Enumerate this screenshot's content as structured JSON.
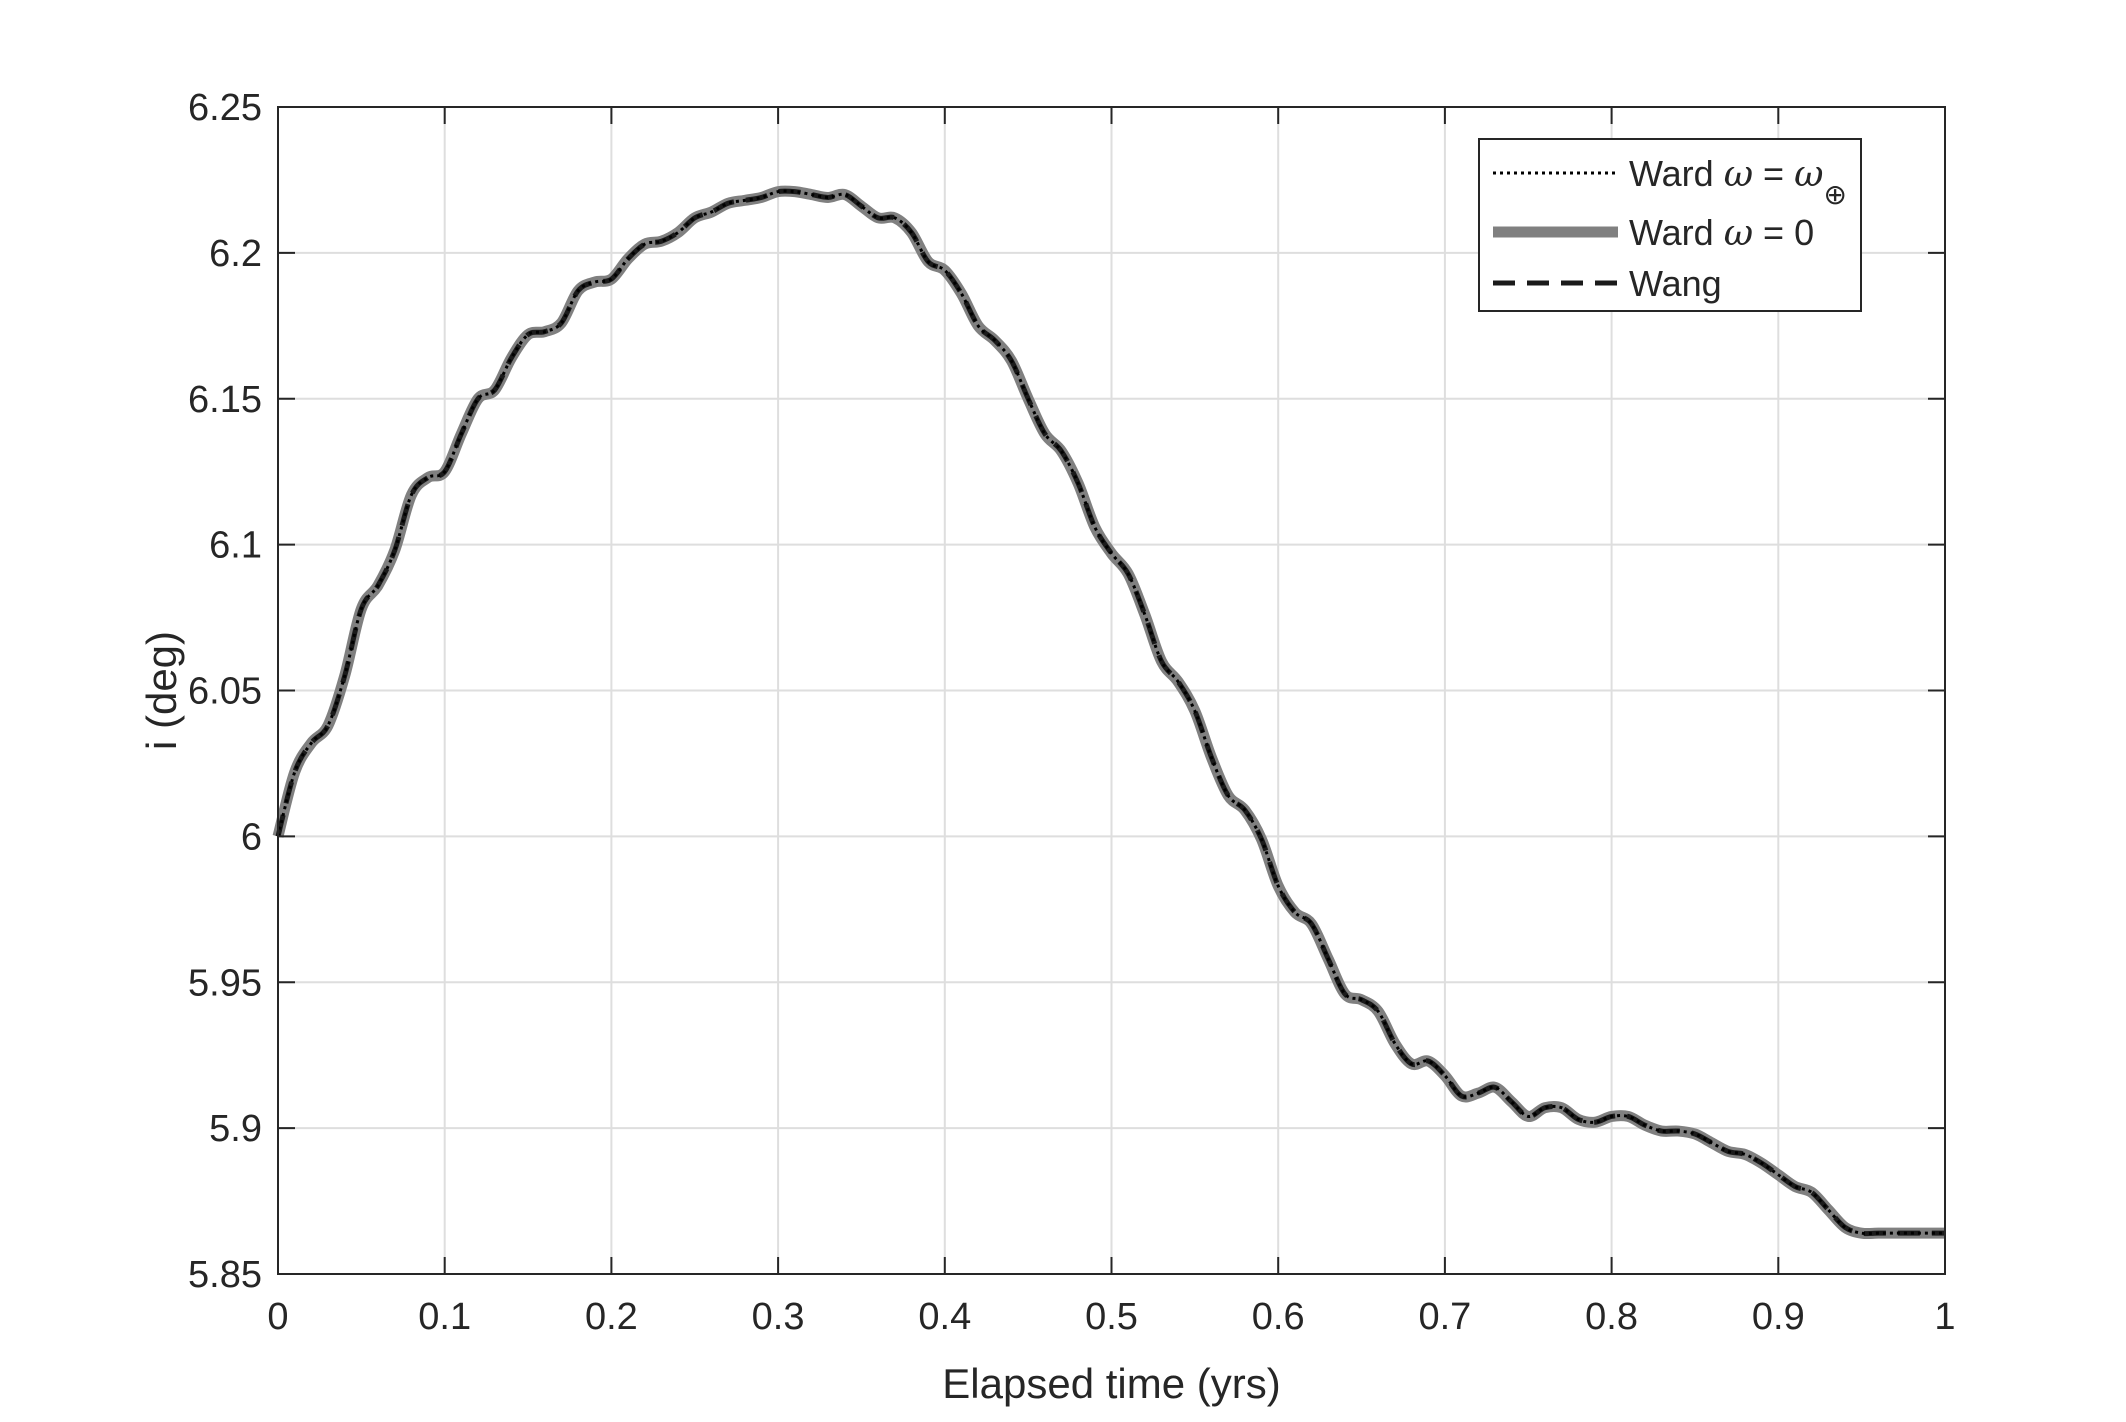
{
  "chart_data": {
    "type": "line",
    "title": "",
    "xlabel": "Elapsed time (yrs)",
    "ylabel": "i (deg)",
    "xlim": [
      0,
      1
    ],
    "ylim": [
      5.85,
      6.25
    ],
    "x_ticks": [
      0,
      0.1,
      0.2,
      0.3,
      0.4,
      0.5,
      0.6,
      0.7,
      0.8,
      0.9,
      1
    ],
    "x_tick_labels": [
      "0",
      "0.1",
      "0.2",
      "0.3",
      "0.4",
      "0.5",
      "0.6",
      "0.7",
      "0.8",
      "0.9",
      "1"
    ],
    "y_ticks": [
      5.85,
      5.9,
      5.95,
      6,
      6.05,
      6.1,
      6.15,
      6.2,
      6.25
    ],
    "y_tick_labels": [
      "5.85",
      "5.9",
      "5.95",
      "6",
      "6.05",
      "6.1",
      "6.15",
      "6.2",
      "6.25"
    ],
    "grid": true,
    "legend_position": "top-right",
    "legend": [
      {
        "prefix": "Ward ",
        "symbol": "ω",
        "suffix": " = ",
        "symbol2": "ω",
        "subscript": "⊕",
        "style": "dotted",
        "color": "#000000"
      },
      {
        "prefix": "Ward ",
        "symbol": "ω",
        "suffix": " = 0",
        "symbol2": "",
        "subscript": "",
        "style": "solid-thick",
        "color": "#808080"
      },
      {
        "prefix": "Wang",
        "symbol": "",
        "suffix": "",
        "symbol2": "",
        "subscript": "",
        "style": "dashed",
        "color": "#1a1a1a"
      }
    ],
    "x": [
      0,
      0.01,
      0.02,
      0.03,
      0.04,
      0.05,
      0.06,
      0.07,
      0.08,
      0.09,
      0.1,
      0.11,
      0.12,
      0.13,
      0.14,
      0.15,
      0.16,
      0.17,
      0.18,
      0.19,
      0.2,
      0.21,
      0.22,
      0.23,
      0.24,
      0.25,
      0.26,
      0.27,
      0.28,
      0.29,
      0.3,
      0.31,
      0.32,
      0.33,
      0.34,
      0.35,
      0.36,
      0.37,
      0.38,
      0.39,
      0.4,
      0.41,
      0.42,
      0.43,
      0.44,
      0.45,
      0.46,
      0.47,
      0.48,
      0.49,
      0.5,
      0.51,
      0.52,
      0.53,
      0.54,
      0.55,
      0.56,
      0.57,
      0.58,
      0.59,
      0.6,
      0.61,
      0.62,
      0.63,
      0.64,
      0.65,
      0.66,
      0.67,
      0.68,
      0.69,
      0.7,
      0.71,
      0.72,
      0.73,
      0.74,
      0.75,
      0.76,
      0.77,
      0.78,
      0.79,
      0.8,
      0.81,
      0.82,
      0.83,
      0.84,
      0.85,
      0.86,
      0.87,
      0.88,
      0.89,
      0.9,
      0.91,
      0.92,
      0.93,
      0.94,
      0.95,
      0.96,
      0.97,
      0.98,
      0.99,
      1.0
    ],
    "series": [
      {
        "name": "Ward ω = ω⊕",
        "style": "dotted",
        "color": "#000000",
        "values": [
          6.0,
          6.022,
          6.032,
          6.038,
          6.055,
          6.078,
          6.086,
          6.098,
          6.117,
          6.123,
          6.125,
          6.138,
          6.15,
          6.153,
          6.164,
          6.172,
          6.173,
          6.176,
          6.187,
          6.19,
          6.191,
          6.198,
          6.203,
          6.204,
          6.207,
          6.212,
          6.214,
          6.217,
          6.218,
          6.219,
          6.221,
          6.221,
          6.22,
          6.219,
          6.22,
          6.216,
          6.212,
          6.212,
          6.207,
          6.197,
          6.194,
          6.186,
          6.175,
          6.17,
          6.163,
          6.15,
          6.138,
          6.132,
          6.121,
          6.106,
          6.097,
          6.09,
          6.076,
          6.06,
          6.053,
          6.043,
          6.027,
          6.014,
          6.009,
          5.999,
          5.983,
          5.974,
          5.97,
          5.958,
          5.946,
          5.944,
          5.94,
          5.929,
          5.922,
          5.923,
          5.918,
          5.911,
          5.912,
          5.914,
          5.909,
          5.904,
          5.907,
          5.907,
          5.903,
          5.902,
          5.904,
          5.904,
          5.901,
          5.899,
          5.899,
          5.898,
          5.895,
          5.892,
          5.891,
          5.888,
          5.884,
          5.88,
          5.878,
          5.872,
          5.866,
          5.864,
          5.864,
          5.864,
          5.864,
          5.864,
          5.864
        ]
      },
      {
        "name": "Ward ω = 0",
        "style": "solid-thick",
        "color": "#808080",
        "values": [
          6.0,
          6.022,
          6.032,
          6.038,
          6.055,
          6.078,
          6.086,
          6.098,
          6.117,
          6.123,
          6.125,
          6.138,
          6.15,
          6.153,
          6.164,
          6.172,
          6.173,
          6.176,
          6.187,
          6.19,
          6.191,
          6.198,
          6.203,
          6.204,
          6.207,
          6.212,
          6.214,
          6.217,
          6.218,
          6.219,
          6.221,
          6.221,
          6.22,
          6.219,
          6.22,
          6.216,
          6.212,
          6.212,
          6.207,
          6.197,
          6.194,
          6.186,
          6.175,
          6.17,
          6.163,
          6.15,
          6.138,
          6.132,
          6.121,
          6.106,
          6.097,
          6.09,
          6.076,
          6.06,
          6.053,
          6.043,
          6.027,
          6.014,
          6.009,
          5.999,
          5.983,
          5.974,
          5.97,
          5.958,
          5.946,
          5.944,
          5.94,
          5.929,
          5.922,
          5.923,
          5.918,
          5.911,
          5.912,
          5.914,
          5.909,
          5.904,
          5.907,
          5.907,
          5.903,
          5.902,
          5.904,
          5.904,
          5.901,
          5.899,
          5.899,
          5.898,
          5.895,
          5.892,
          5.891,
          5.888,
          5.884,
          5.88,
          5.878,
          5.872,
          5.866,
          5.864,
          5.864,
          5.864,
          5.864,
          5.864,
          5.864
        ]
      },
      {
        "name": "Wang",
        "style": "dashed",
        "color": "#1a1a1a",
        "values": [
          6.0,
          6.022,
          6.032,
          6.038,
          6.055,
          6.078,
          6.086,
          6.098,
          6.117,
          6.123,
          6.125,
          6.138,
          6.15,
          6.153,
          6.164,
          6.172,
          6.173,
          6.176,
          6.187,
          6.19,
          6.191,
          6.198,
          6.203,
          6.204,
          6.207,
          6.212,
          6.214,
          6.217,
          6.218,
          6.219,
          6.221,
          6.221,
          6.22,
          6.219,
          6.22,
          6.216,
          6.212,
          6.212,
          6.207,
          6.197,
          6.194,
          6.186,
          6.175,
          6.17,
          6.163,
          6.15,
          6.138,
          6.132,
          6.121,
          6.106,
          6.097,
          6.09,
          6.076,
          6.06,
          6.053,
          6.043,
          6.027,
          6.014,
          6.009,
          5.999,
          5.983,
          5.974,
          5.97,
          5.958,
          5.946,
          5.944,
          5.94,
          5.929,
          5.922,
          5.923,
          5.918,
          5.911,
          5.912,
          5.914,
          5.909,
          5.904,
          5.907,
          5.907,
          5.903,
          5.902,
          5.904,
          5.904,
          5.901,
          5.899,
          5.899,
          5.898,
          5.895,
          5.892,
          5.891,
          5.888,
          5.884,
          5.88,
          5.878,
          5.872,
          5.866,
          5.864,
          5.864,
          5.864,
          5.864,
          5.864,
          5.864
        ]
      }
    ]
  }
}
